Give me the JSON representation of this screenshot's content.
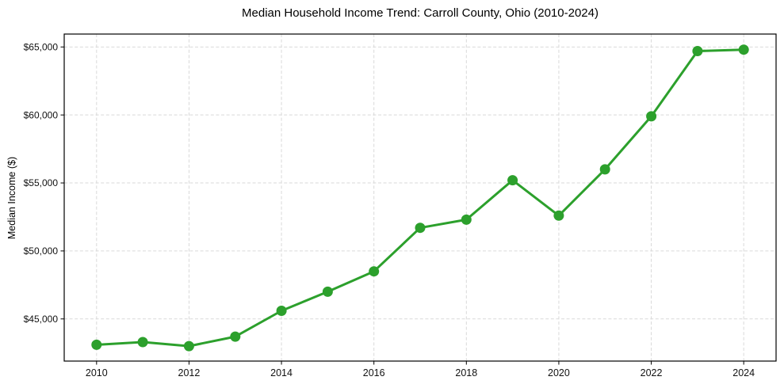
{
  "chart_data": {
    "type": "line",
    "title": "Median Household Income Trend: Carroll County, Ohio (2010-2024)",
    "xlabel": "",
    "ylabel": "Median Income ($)",
    "x": [
      2010,
      2011,
      2012,
      2013,
      2014,
      2015,
      2016,
      2017,
      2018,
      2019,
      2020,
      2021,
      2022,
      2023,
      2024
    ],
    "series": [
      {
        "name": "Median Household Income",
        "values": [
          43100,
          43300,
          43000,
          43700,
          45600,
          47000,
          48500,
          51700,
          52300,
          55200,
          52600,
          56000,
          59900,
          64700,
          64800
        ]
      }
    ],
    "x_ticks": [
      {
        "value": 2010,
        "label": "2010"
      },
      {
        "value": 2012,
        "label": "2012"
      },
      {
        "value": 2014,
        "label": "2014"
      },
      {
        "value": 2016,
        "label": "2016"
      },
      {
        "value": 2018,
        "label": "2018"
      },
      {
        "value": 2020,
        "label": "2020"
      },
      {
        "value": 2022,
        "label": "2022"
      },
      {
        "value": 2024,
        "label": "2024"
      }
    ],
    "y_ticks": [
      {
        "value": 45000,
        "label": "$45,000"
      },
      {
        "value": 50000,
        "label": "$50,000"
      },
      {
        "value": 55000,
        "label": "$55,000"
      },
      {
        "value": 60000,
        "label": "$60,000"
      },
      {
        "value": 65000,
        "label": "$65,000"
      }
    ],
    "xlim": [
      2009.3,
      2024.7
    ],
    "ylim": [
      41900,
      65950
    ],
    "grid": true,
    "legend": "none",
    "line_color": "#2ca02c",
    "marker_color": "#2ca02c",
    "grid_color": "#d9d9d9",
    "grid_dash": "4 2.6",
    "spine_color": "#000000",
    "tick_color": "#000000",
    "text_color": "#111111",
    "background_color": "#ffffff",
    "line_width": 3,
    "marker_diameter": 13
  }
}
